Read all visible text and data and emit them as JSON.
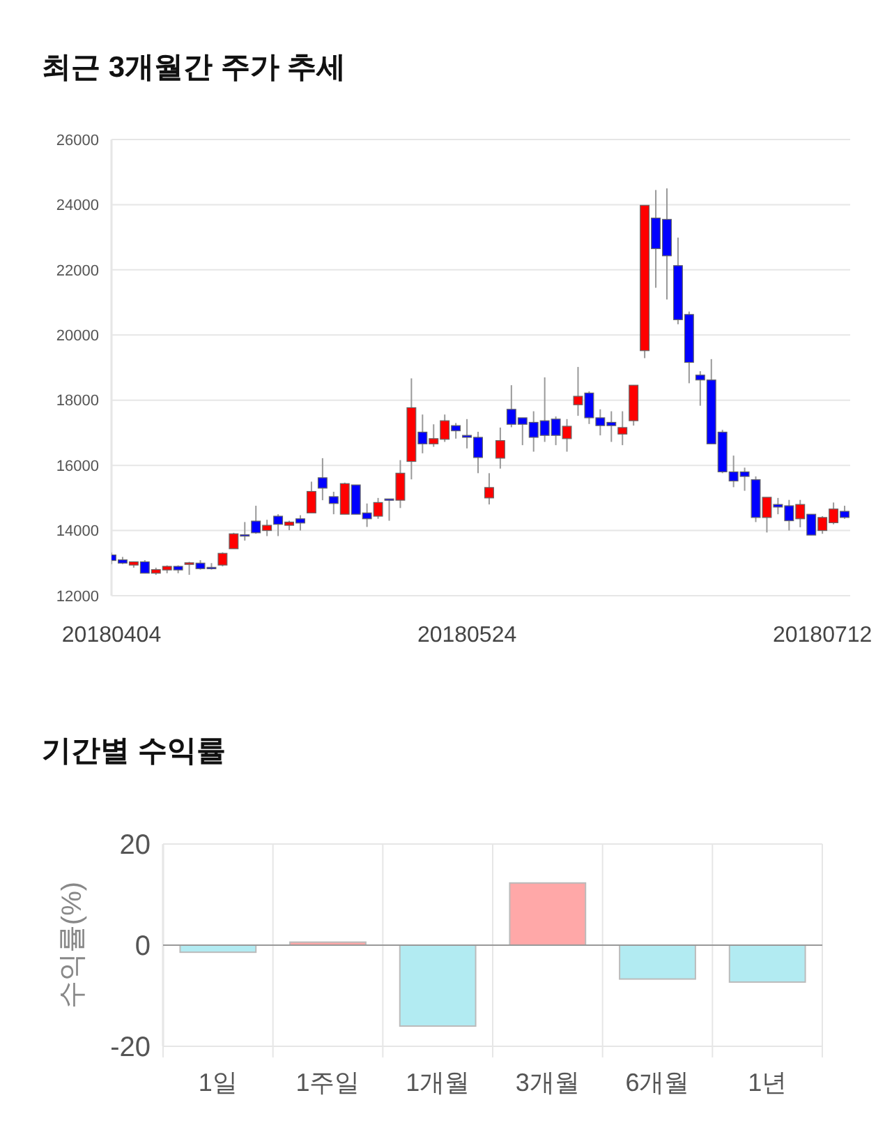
{
  "chart_data": [
    {
      "type": "candlestick",
      "title": "최근 3개월간 주가 추세",
      "categories": [
        "20180404",
        null,
        null,
        null,
        null,
        null,
        null,
        null,
        null,
        null,
        null,
        null,
        null,
        null,
        null,
        null,
        null,
        null,
        null,
        null,
        null,
        null,
        null,
        null,
        null,
        null,
        null,
        null,
        null,
        null,
        null,
        null,
        "20180524",
        null,
        null,
        null,
        null,
        null,
        null,
        null,
        null,
        null,
        null,
        null,
        null,
        null,
        null,
        null,
        null,
        null,
        null,
        null,
        null,
        null,
        null,
        null,
        null,
        null,
        null,
        null,
        null,
        null,
        null,
        null,
        "20180712",
        null,
        null
      ],
      "ohlc": [
        [
          13250,
          13320,
          12970,
          13080
        ],
        [
          13100,
          13190,
          12970,
          13000
        ],
        [
          12940,
          13050,
          12860,
          13040
        ],
        [
          13040,
          13090,
          12690,
          12690
        ],
        [
          12690,
          12860,
          12640,
          12800
        ],
        [
          12790,
          12930,
          12690,
          12900
        ],
        [
          12900,
          12930,
          12690,
          12790
        ],
        [
          12960,
          13040,
          12640,
          13010
        ],
        [
          13000,
          13090,
          12800,
          12830
        ],
        [
          12870,
          13000,
          12800,
          12830
        ],
        [
          12940,
          13330,
          12900,
          13300
        ],
        [
          13440,
          13930,
          13440,
          13900
        ],
        [
          13870,
          14260,
          13690,
          13830
        ],
        [
          14290,
          14760,
          13900,
          13930
        ],
        [
          14000,
          14330,
          13830,
          14160
        ],
        [
          14440,
          14500,
          13830,
          14190
        ],
        [
          14160,
          14300,
          14010,
          14260
        ],
        [
          14360,
          14470,
          14000,
          14230
        ],
        [
          14540,
          15500,
          14540,
          15200
        ],
        [
          15620,
          16220,
          14930,
          15300
        ],
        [
          15040,
          15190,
          14500,
          14830
        ],
        [
          14500,
          15470,
          14500,
          15440
        ],
        [
          15400,
          15400,
          14500,
          14500
        ],
        [
          14540,
          14830,
          14110,
          14360
        ],
        [
          14440,
          15000,
          14360,
          14860
        ],
        [
          14970,
          14970,
          14300,
          14930
        ],
        [
          14930,
          16160,
          14690,
          15760
        ],
        [
          16120,
          18670,
          15570,
          17770
        ],
        [
          17020,
          17560,
          16370,
          16660
        ],
        [
          16660,
          17260,
          16570,
          16820
        ],
        [
          16800,
          17560,
          16720,
          17370
        ],
        [
          17220,
          17300,
          16820,
          17060
        ],
        [
          16920,
          17420,
          16520,
          16860
        ],
        [
          16860,
          17030,
          15760,
          16240
        ],
        [
          15000,
          15760,
          14800,
          15320
        ],
        [
          16220,
          17160,
          15900,
          16760
        ],
        [
          17720,
          18460,
          17170,
          17260
        ],
        [
          17460,
          17460,
          16620,
          17260
        ],
        [
          17320,
          17660,
          16420,
          16860
        ],
        [
          17370,
          18700,
          16720,
          16920
        ],
        [
          17420,
          17500,
          16620,
          16920
        ],
        [
          16820,
          17420,
          16420,
          17200
        ],
        [
          17860,
          19020,
          17520,
          18120
        ],
        [
          18220,
          18270,
          17270,
          17460
        ],
        [
          17460,
          17720,
          16920,
          17220
        ],
        [
          17320,
          17660,
          16720,
          17220
        ],
        [
          16960,
          17660,
          16620,
          17160
        ],
        [
          17370,
          18460,
          17220,
          18460
        ],
        [
          19520,
          23980,
          19290,
          23980
        ],
        [
          23590,
          24450,
          21450,
          22650
        ],
        [
          23550,
          24500,
          21090,
          22430
        ],
        [
          22130,
          22990,
          20330,
          20470
        ],
        [
          20630,
          20720,
          18520,
          19160
        ],
        [
          18770,
          18890,
          17830,
          18620
        ],
        [
          18620,
          19260,
          16660,
          16660
        ],
        [
          17020,
          17090,
          15760,
          15800
        ],
        [
          15800,
          16300,
          15330,
          15520
        ],
        [
          15800,
          15930,
          15220,
          15660
        ],
        [
          15560,
          15660,
          14260,
          14400
        ],
        [
          14400,
          15020,
          13940,
          15020
        ],
        [
          14800,
          15000,
          14500,
          14720
        ],
        [
          14760,
          14940,
          14000,
          14300
        ],
        [
          14360,
          14940,
          14100,
          14800
        ],
        [
          14500,
          14500,
          13860,
          13860
        ],
        [
          14000,
          14440,
          13900,
          14400
        ],
        [
          14240,
          14860,
          14190,
          14660
        ],
        [
          14590,
          14760,
          14360,
          14400
        ]
      ],
      "ylim": [
        12000,
        26000
      ],
      "yticks": [
        12000,
        14000,
        16000,
        18000,
        20000,
        22000,
        24000,
        26000
      ],
      "grid": "y"
    },
    {
      "type": "bar",
      "title": "기간별 수익률",
      "ylabel": "수익률(%)",
      "categories": [
        "1일",
        "1주일",
        "1개월",
        "3개월",
        "6개월",
        "1년"
      ],
      "values": [
        -1.4,
        0.6,
        -16,
        12.3,
        -6.7,
        -7.3
      ],
      "colors": [
        "#b2ebf2",
        "#ffa8a8",
        "#b2ebf2",
        "#ffa8a8",
        "#b2ebf2",
        "#b2ebf2"
      ],
      "ylim": [
        -20,
        20
      ],
      "yticks": [
        -20,
        0,
        20
      ],
      "grid": true
    }
  ]
}
